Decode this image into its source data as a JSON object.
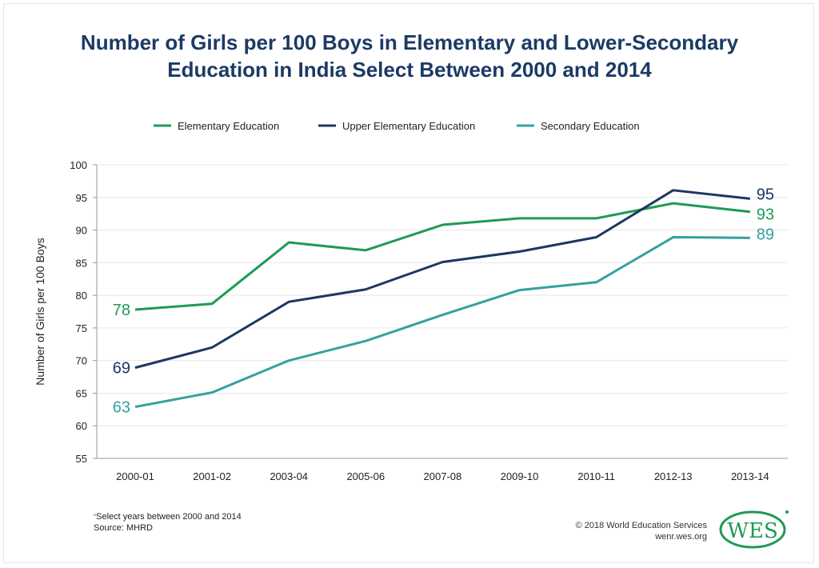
{
  "chart_data": {
    "type": "line",
    "title_line1": "Number of Girls per 100 Boys in Elementary and Lower-Secondary",
    "title_line2": "Education in India Select Between 2000 and 2014",
    "xlabel": "",
    "ylabel": "Number of Girls per 100 Boys",
    "ylim": [
      55,
      100
    ],
    "yticks": [
      "55",
      "60",
      "65",
      "70",
      "75",
      "80",
      "85",
      "90",
      "95",
      "100"
    ],
    "grid": true,
    "legend_position": "top",
    "categories": [
      "2000-01",
      "2001-02",
      "2003-04",
      "2005-06",
      "2007-08",
      "2009-10",
      "2010-11",
      "2012-13",
      "2013-14"
    ],
    "series": [
      {
        "name": "Elementary Education",
        "color": "#1f9a55",
        "values": [
          77.8,
          78.7,
          88.1,
          86.9,
          90.8,
          91.8,
          91.8,
          94.1,
          92.8
        ],
        "start_label": "78",
        "end_label": "93"
      },
      {
        "name": "Upper Elementary Education",
        "color": "#1c3764",
        "values": [
          68.9,
          72.0,
          79.0,
          80.9,
          85.1,
          86.7,
          88.9,
          96.1,
          94.8
        ],
        "start_label": "69",
        "end_label": "95"
      },
      {
        "name": "Secondary Education",
        "color": "#35a0a0",
        "values": [
          62.9,
          65.1,
          70.0,
          73.0,
          77.0,
          80.8,
          82.0,
          88.9,
          88.8
        ],
        "start_label": "63",
        "end_label": "89"
      }
    ]
  },
  "footer": {
    "asterisk": "*",
    "note": "Select years between 2000 and 2014",
    "source": "Source:  MHRD",
    "copyright": "© 2018 World Education Services",
    "url": "wenr.wes.org",
    "logo_text": "WES"
  }
}
